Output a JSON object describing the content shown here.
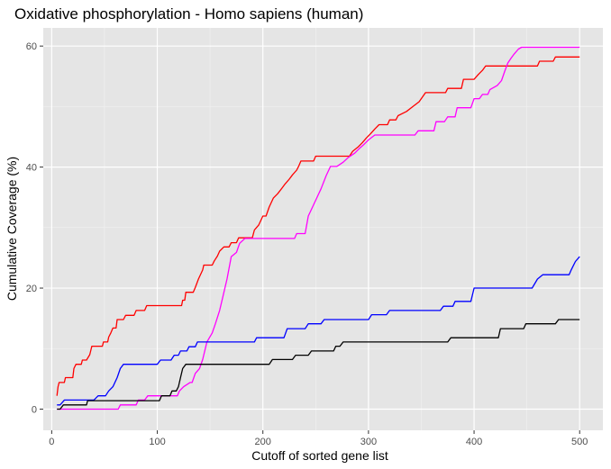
{
  "chart_data": {
    "type": "line",
    "title": "Oxidative phosphorylation - Homo sapiens (human)",
    "xlabel": "Cutoff of sorted gene list",
    "ylabel": "Cumulative Coverage (%)",
    "xlim": [
      -8,
      522
    ],
    "ylim": [
      -3.5,
      63
    ],
    "x_ticks": [
      0,
      100,
      200,
      300,
      400,
      500
    ],
    "y_ticks": [
      0,
      20,
      40,
      60
    ],
    "grid": true,
    "legend": "none",
    "series": [
      {
        "color": "#ff0000",
        "points": [
          [
            5,
            2.2
          ],
          [
            6,
            3.7
          ],
          [
            7,
            4.4
          ],
          [
            12,
            4.4
          ],
          [
            13,
            5.2
          ],
          [
            20,
            5.2
          ],
          [
            21,
            6.7
          ],
          [
            23,
            7.4
          ],
          [
            28,
            7.4
          ],
          [
            29,
            8.1
          ],
          [
            33,
            8.1
          ],
          [
            36,
            9
          ],
          [
            38,
            10.4
          ],
          [
            48,
            10.4
          ],
          [
            49,
            11.1
          ],
          [
            53,
            11.1
          ],
          [
            54,
            11.9
          ],
          [
            56,
            12.6
          ],
          [
            58,
            13.4
          ],
          [
            61,
            13.4
          ],
          [
            62,
            14.8
          ],
          [
            68,
            14.8
          ],
          [
            70,
            15.5
          ],
          [
            78,
            15.5
          ],
          [
            80,
            16.3
          ],
          [
            88,
            16.3
          ],
          [
            90,
            17.1
          ],
          [
            123,
            17.1
          ],
          [
            124,
            18
          ],
          [
            126,
            18
          ],
          [
            127,
            19.3
          ],
          [
            134,
            19.3
          ],
          [
            136,
            20.1
          ],
          [
            139,
            21.5
          ],
          [
            143,
            23
          ],
          [
            144,
            23.8
          ],
          [
            152,
            23.8
          ],
          [
            154,
            24.5
          ],
          [
            157,
            25.3
          ],
          [
            159,
            26.1
          ],
          [
            163,
            26.8
          ],
          [
            168,
            26.8
          ],
          [
            170,
            27.5
          ],
          [
            175,
            27.5
          ],
          [
            177,
            28.3
          ],
          [
            190,
            28.3
          ],
          [
            192,
            29.6
          ],
          [
            196,
            30.4
          ],
          [
            200,
            31.9
          ],
          [
            203,
            31.9
          ],
          [
            206,
            33.4
          ],
          [
            210,
            34.9
          ],
          [
            214,
            35.6
          ],
          [
            218,
            36.5
          ],
          [
            221,
            37.2
          ],
          [
            225,
            38
          ],
          [
            228,
            38.7
          ],
          [
            232,
            39.5
          ],
          [
            234,
            40.2
          ],
          [
            236,
            41
          ],
          [
            248,
            41
          ],
          [
            250,
            41.8
          ],
          [
            282,
            41.8
          ],
          [
            285,
            42.6
          ],
          [
            290,
            43.3
          ],
          [
            294,
            44
          ],
          [
            298,
            44.8
          ],
          [
            302,
            45.5
          ],
          [
            306,
            46.3
          ],
          [
            310,
            47
          ],
          [
            318,
            47
          ],
          [
            320,
            47.8
          ],
          [
            326,
            47.8
          ],
          [
            328,
            48.5
          ],
          [
            336,
            49.2
          ],
          [
            342,
            50
          ],
          [
            348,
            50.8
          ],
          [
            354,
            52.3
          ],
          [
            373,
            52.3
          ],
          [
            375,
            53
          ],
          [
            388,
            53
          ],
          [
            390,
            54.5
          ],
          [
            400,
            54.5
          ],
          [
            404,
            55.3
          ],
          [
            408,
            56
          ],
          [
            411,
            56.7
          ],
          [
            440,
            56.7
          ],
          [
            460,
            56.7
          ],
          [
            462,
            57.5
          ],
          [
            475,
            57.5
          ],
          [
            477,
            58.2
          ],
          [
            500,
            58.2
          ]
        ]
      },
      {
        "color": "#ff00ff",
        "points": [
          [
            5,
            0
          ],
          [
            63,
            0
          ],
          [
            65,
            0.7
          ],
          [
            80,
            0.7
          ],
          [
            82,
            1.5
          ],
          [
            88,
            1.5
          ],
          [
            91,
            2.2
          ],
          [
            119,
            2.2
          ],
          [
            121,
            3
          ],
          [
            125,
            3.7
          ],
          [
            131,
            4.4
          ],
          [
            133,
            4.4
          ],
          [
            136,
            5.9
          ],
          [
            140,
            6.7
          ],
          [
            143,
            8.2
          ],
          [
            147,
            11.1
          ],
          [
            152,
            12.6
          ],
          [
            155,
            14.1
          ],
          [
            159,
            16.3
          ],
          [
            162,
            18.5
          ],
          [
            166,
            21.5
          ],
          [
            170,
            25.2
          ],
          [
            175,
            25.9
          ],
          [
            178,
            27.4
          ],
          [
            183,
            28.2
          ],
          [
            230,
            28.2
          ],
          [
            232,
            29
          ],
          [
            240,
            29
          ],
          [
            243,
            31.9
          ],
          [
            247,
            33.4
          ],
          [
            251,
            34.9
          ],
          [
            255,
            36.4
          ],
          [
            260,
            38.6
          ],
          [
            264,
            40.1
          ],
          [
            270,
            40.1
          ],
          [
            276,
            40.8
          ],
          [
            281,
            41.6
          ],
          [
            287,
            42.3
          ],
          [
            291,
            43
          ],
          [
            296,
            43.8
          ],
          [
            300,
            44.5
          ],
          [
            306,
            45.3
          ],
          [
            344,
            45.3
          ],
          [
            347,
            46
          ],
          [
            362,
            46
          ],
          [
            364,
            47.5
          ],
          [
            372,
            47.5
          ],
          [
            375,
            48.3
          ],
          [
            382,
            48.3
          ],
          [
            384,
            49.8
          ],
          [
            397,
            49.8
          ],
          [
            400,
            51.3
          ],
          [
            405,
            51.3
          ],
          [
            408,
            52
          ],
          [
            413,
            52
          ],
          [
            415,
            52.8
          ],
          [
            422,
            53.5
          ],
          [
            426,
            54.3
          ],
          [
            429,
            55.8
          ],
          [
            432,
            57.2
          ],
          [
            435,
            58
          ],
          [
            438,
            58.7
          ],
          [
            442,
            59.5
          ],
          [
            445,
            59.8
          ],
          [
            500,
            59.8
          ]
        ]
      },
      {
        "color": "#0000ff",
        "points": [
          [
            5,
            0.7
          ],
          [
            8,
            0.7
          ],
          [
            12,
            1.5
          ],
          [
            40,
            1.5
          ],
          [
            44,
            2.2
          ],
          [
            51,
            2.2
          ],
          [
            54,
            3
          ],
          [
            58,
            3.7
          ],
          [
            62,
            5.2
          ],
          [
            65,
            6.7
          ],
          [
            68,
            7.4
          ],
          [
            100,
            7.4
          ],
          [
            103,
            8.1
          ],
          [
            113,
            8.1
          ],
          [
            116,
            8.9
          ],
          [
            120,
            8.9
          ],
          [
            122,
            9.6
          ],
          [
            128,
            9.6
          ],
          [
            130,
            10.3
          ],
          [
            136,
            10.3
          ],
          [
            138,
            11.1
          ],
          [
            192,
            11.1
          ],
          [
            194,
            11.8
          ],
          [
            220,
            11.8
          ],
          [
            223,
            13.3
          ],
          [
            240,
            13.3
          ],
          [
            243,
            14.1
          ],
          [
            255,
            14.1
          ],
          [
            258,
            14.8
          ],
          [
            300,
            14.8
          ],
          [
            303,
            15.6
          ],
          [
            317,
            15.6
          ],
          [
            320,
            16.3
          ],
          [
            368,
            16.3
          ],
          [
            371,
            17
          ],
          [
            380,
            17
          ],
          [
            382,
            17.8
          ],
          [
            397,
            17.8
          ],
          [
            400,
            20
          ],
          [
            455,
            20
          ],
          [
            460,
            21.5
          ],
          [
            465,
            22.2
          ],
          [
            490,
            22.2
          ],
          [
            492,
            23
          ],
          [
            496,
            24.4
          ],
          [
            500,
            25.2
          ]
        ]
      },
      {
        "color": "#000000",
        "points": [
          [
            5,
            0
          ],
          [
            8,
            0
          ],
          [
            11,
            0.7
          ],
          [
            33,
            0.7
          ],
          [
            34,
            1.4
          ],
          [
            102,
            1.4
          ],
          [
            104,
            2.2
          ],
          [
            112,
            2.2
          ],
          [
            114,
            3
          ],
          [
            118,
            3
          ],
          [
            120,
            3.7
          ],
          [
            122,
            5.2
          ],
          [
            124,
            6.7
          ],
          [
            127,
            7.4
          ],
          [
            206,
            7.4
          ],
          [
            209,
            8.2
          ],
          [
            228,
            8.2
          ],
          [
            231,
            8.9
          ],
          [
            243,
            8.9
          ],
          [
            246,
            9.6
          ],
          [
            267,
            9.6
          ],
          [
            269,
            10.4
          ],
          [
            273,
            10.4
          ],
          [
            276,
            11.1
          ],
          [
            375,
            11.1
          ],
          [
            378,
            11.8
          ],
          [
            423,
            11.8
          ],
          [
            425,
            13.3
          ],
          [
            447,
            13.3
          ],
          [
            449,
            14.1
          ],
          [
            477,
            14.1
          ],
          [
            480,
            14.8
          ],
          [
            500,
            14.8
          ]
        ]
      }
    ]
  }
}
